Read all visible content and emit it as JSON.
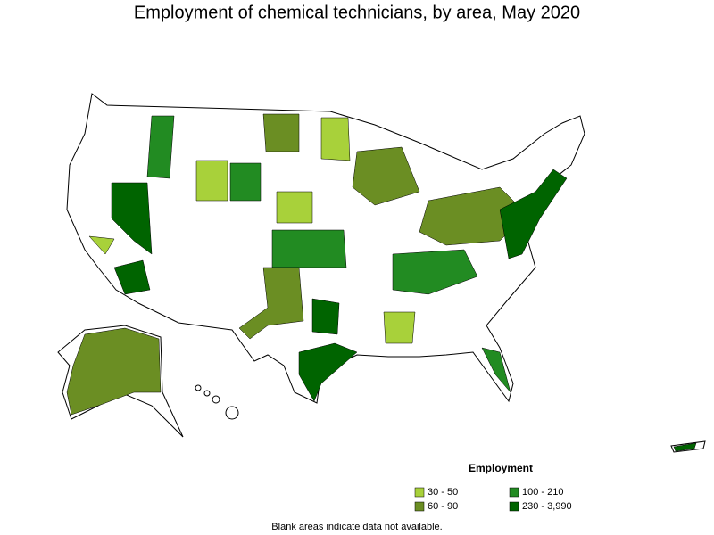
{
  "title": "Employment of chemical technicians, by area, May 2020",
  "legend": {
    "title": "Employment",
    "items": [
      {
        "label": "30 - 50",
        "color": "#a8d13a"
      },
      {
        "label": "60 - 90",
        "color": "#6b8e23"
      },
      {
        "label": "100 - 210",
        "color": "#228b22"
      },
      {
        "label": "230 - 3,990",
        "color": "#006400"
      }
    ]
  },
  "note": "Blank areas indicate data not available."
}
